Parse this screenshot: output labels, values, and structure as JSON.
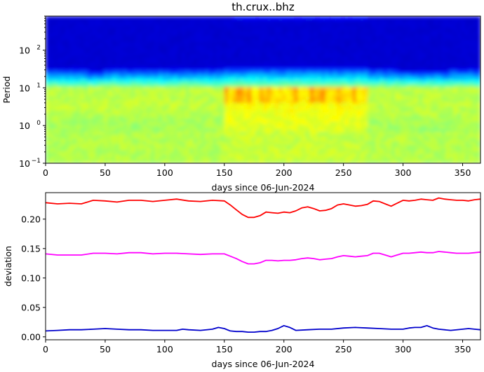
{
  "chart_data": [
    {
      "type": "heatmap",
      "title": "th.crux..bhz",
      "xlabel": "days since 06-Jun-2024",
      "ylabel": "Period",
      "xlim": [
        0,
        365
      ],
      "ylim": [
        0.1,
        800
      ],
      "yscale": "log",
      "colormap": "jet",
      "x_ticks": [
        0,
        50,
        100,
        150,
        200,
        250,
        300,
        350
      ],
      "y_ticks": [
        {
          "value": 0.1,
          "base": "10",
          "exp": "−1"
        },
        {
          "value": 1,
          "base": "10",
          "exp": "0"
        },
        {
          "value": 10,
          "base": "10",
          "exp": "1"
        },
        {
          "value": 100,
          "base": "10",
          "exp": "2"
        }
      ]
    },
    {
      "type": "line",
      "title": "",
      "xlabel": "days since 06-Jun-2024",
      "ylabel": "deviation",
      "xlim": [
        0,
        365
      ],
      "ylim": [
        -0.005,
        0.245
      ],
      "x_ticks": [
        0,
        50,
        100,
        150,
        200,
        250,
        300,
        350
      ],
      "y_ticks": [
        "0.00",
        "0.05",
        "0.10",
        "0.15",
        "0.20"
      ],
      "series": [
        {
          "color": "#ff0000",
          "x": [
            0,
            10,
            20,
            30,
            40,
            50,
            60,
            70,
            80,
            90,
            100,
            110,
            120,
            130,
            140,
            150,
            155,
            160,
            165,
            170,
            175,
            180,
            185,
            190,
            195,
            200,
            205,
            210,
            215,
            220,
            225,
            230,
            235,
            240,
            245,
            250,
            255,
            260,
            265,
            270,
            275,
            280,
            285,
            290,
            295,
            300,
            305,
            310,
            315,
            320,
            325,
            330,
            335,
            340,
            345,
            350,
            355,
            360,
            365
          ],
          "y": [
            0.228,
            0.226,
            0.227,
            0.226,
            0.232,
            0.231,
            0.229,
            0.232,
            0.232,
            0.23,
            0.232,
            0.234,
            0.231,
            0.23,
            0.232,
            0.231,
            0.224,
            0.216,
            0.208,
            0.203,
            0.203,
            0.206,
            0.212,
            0.211,
            0.21,
            0.212,
            0.211,
            0.214,
            0.219,
            0.221,
            0.218,
            0.214,
            0.215,
            0.218,
            0.224,
            0.226,
            0.224,
            0.222,
            0.223,
            0.225,
            0.231,
            0.23,
            0.226,
            0.222,
            0.227,
            0.232,
            0.231,
            0.232,
            0.234,
            0.233,
            0.232,
            0.236,
            0.234,
            0.233,
            0.232,
            0.232,
            0.231,
            0.233,
            0.234
          ]
        },
        {
          "color": "#ff00ff",
          "x": [
            0,
            10,
            20,
            30,
            40,
            50,
            60,
            70,
            80,
            90,
            100,
            110,
            120,
            130,
            140,
            150,
            155,
            160,
            165,
            170,
            175,
            180,
            185,
            190,
            195,
            200,
            205,
            210,
            215,
            220,
            225,
            230,
            235,
            240,
            245,
            250,
            255,
            260,
            265,
            270,
            275,
            280,
            285,
            290,
            295,
            300,
            305,
            310,
            315,
            320,
            325,
            330,
            335,
            340,
            345,
            350,
            355,
            360,
            365
          ],
          "y": [
            0.141,
            0.139,
            0.139,
            0.139,
            0.142,
            0.142,
            0.141,
            0.143,
            0.143,
            0.141,
            0.142,
            0.142,
            0.141,
            0.14,
            0.141,
            0.141,
            0.137,
            0.133,
            0.128,
            0.124,
            0.124,
            0.126,
            0.13,
            0.13,
            0.129,
            0.13,
            0.13,
            0.131,
            0.133,
            0.134,
            0.133,
            0.131,
            0.132,
            0.133,
            0.136,
            0.138,
            0.137,
            0.136,
            0.137,
            0.138,
            0.142,
            0.142,
            0.139,
            0.136,
            0.139,
            0.142,
            0.142,
            0.143,
            0.144,
            0.143,
            0.143,
            0.145,
            0.144,
            0.143,
            0.142,
            0.142,
            0.142,
            0.143,
            0.144
          ]
        },
        {
          "color": "#0000cc",
          "x": [
            0,
            10,
            20,
            30,
            40,
            50,
            60,
            70,
            80,
            90,
            100,
            110,
            115,
            120,
            130,
            140,
            145,
            150,
            155,
            160,
            165,
            170,
            175,
            180,
            185,
            190,
            195,
            200,
            205,
            210,
            220,
            230,
            240,
            250,
            260,
            270,
            280,
            290,
            300,
            305,
            310,
            315,
            320,
            325,
            330,
            340,
            350,
            355,
            360,
            365
          ],
          "y": [
            0.01,
            0.011,
            0.012,
            0.012,
            0.013,
            0.014,
            0.013,
            0.012,
            0.012,
            0.011,
            0.011,
            0.011,
            0.013,
            0.012,
            0.011,
            0.013,
            0.016,
            0.014,
            0.01,
            0.009,
            0.009,
            0.008,
            0.008,
            0.009,
            0.009,
            0.011,
            0.014,
            0.019,
            0.016,
            0.011,
            0.012,
            0.013,
            0.013,
            0.015,
            0.016,
            0.015,
            0.014,
            0.013,
            0.013,
            0.015,
            0.016,
            0.016,
            0.019,
            0.015,
            0.013,
            0.011,
            0.013,
            0.014,
            0.013,
            0.012
          ]
        }
      ]
    }
  ]
}
